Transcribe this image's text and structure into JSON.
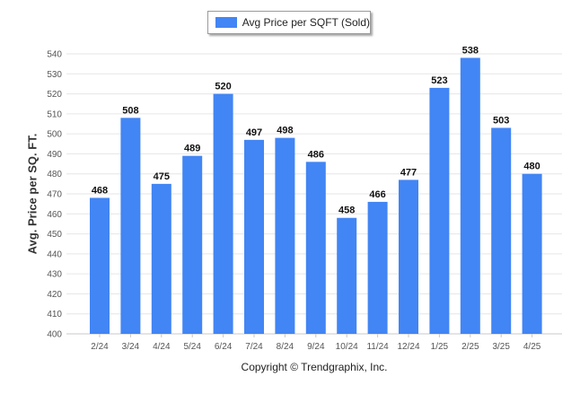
{
  "chart_data": {
    "type": "bar",
    "categories": [
      "2/24",
      "3/24",
      "4/24",
      "5/24",
      "6/24",
      "7/24",
      "8/24",
      "9/24",
      "10/24",
      "11/24",
      "12/24",
      "1/25",
      "2/25",
      "3/25",
      "4/25"
    ],
    "series": [
      {
        "name": "Avg Price per SQFT (Sold)",
        "values": [
          468,
          508,
          475,
          489,
          520,
          497,
          498,
          486,
          458,
          466,
          477,
          523,
          538,
          503,
          480
        ]
      }
    ],
    "title": "",
    "xlabel": "",
    "ylabel": "Avg. Price per SQ. FT.",
    "ylim": [
      400,
      540
    ],
    "yticks": [
      400,
      410,
      420,
      430,
      440,
      450,
      460,
      470,
      480,
      490,
      500,
      510,
      520,
      530,
      540
    ],
    "data_labels": true,
    "grid": true,
    "legend_position": "top-center",
    "bar_color": "#4285f4",
    "grid_color": "#e6e6e6"
  },
  "footer": {
    "copyright": "Copyright © Trendgraphix, Inc."
  }
}
